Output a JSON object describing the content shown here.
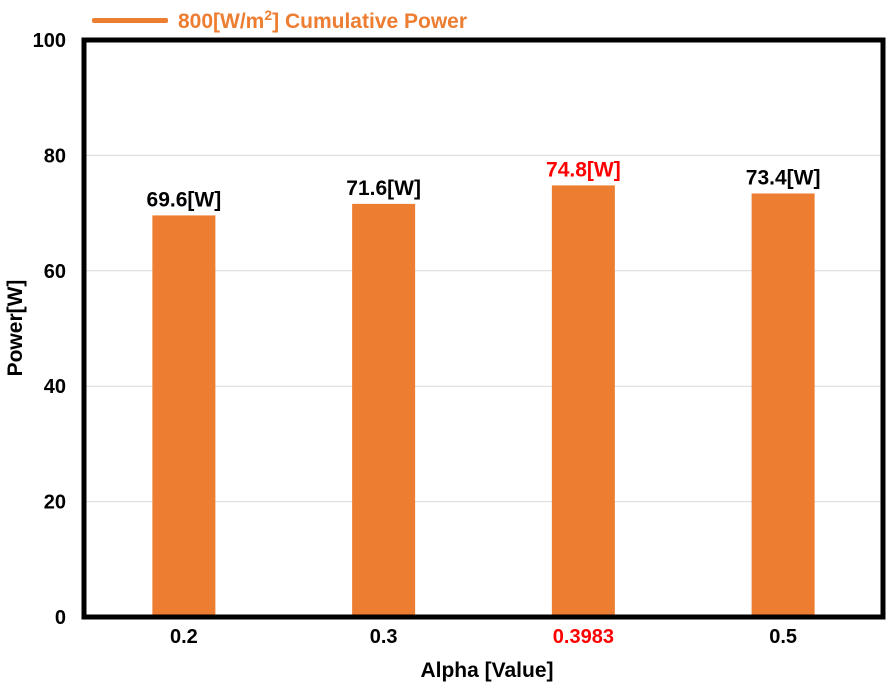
{
  "legend": {
    "prefix": "800[W/m",
    "sup": "2",
    "suffix": "] Cumulative Power",
    "color": "#ED7D31"
  },
  "chart_data": {
    "type": "bar",
    "categories": [
      "0.2",
      "0.3",
      "0.3983",
      "0.5"
    ],
    "series": [
      {
        "name": "800[W/m2] Cumulative Power",
        "values": [
          69.6,
          71.6,
          74.8,
          73.4
        ],
        "color": "#ED7D31"
      }
    ],
    "data_labels": [
      "69.6[W]",
      "71.6[W]",
      "74.8[W]",
      "73.4[W]"
    ],
    "highlight_index": 2,
    "highlight_color": "#FF0000",
    "xlabel": "Alpha [Value]",
    "ylabel": "Power[W]",
    "ylim": [
      0,
      100
    ],
    "yticks": [
      0,
      20,
      40,
      60,
      80,
      100
    ],
    "grid": true,
    "legend_position": "top-left"
  }
}
